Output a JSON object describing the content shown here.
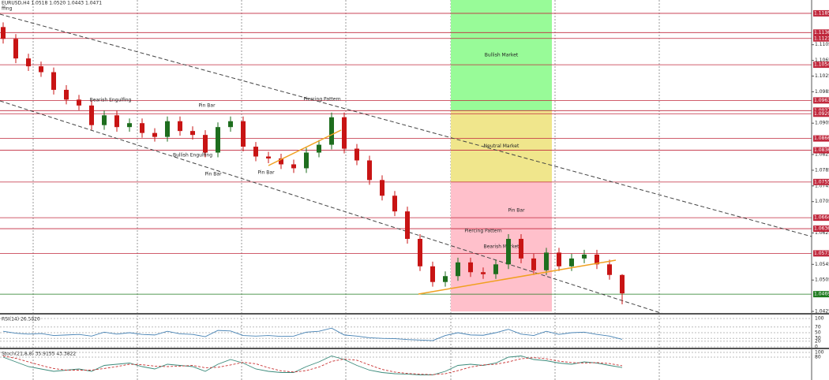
{
  "chart_data": {
    "type": "candlestick",
    "title": "EURUSD,H4  1.0518 1.0520 1.0443 1.0471",
    "subtitle": "ffing",
    "open": [
      1.115,
      1.112,
      1.107,
      1.105,
      1.1035,
      1.099,
      1.0965,
      1.095,
      1.09,
      1.0925,
      1.0895,
      1.0905,
      1.088,
      1.087,
      1.091,
      1.0885,
      1.0875,
      1.083,
      1.0895,
      1.091,
      1.0845,
      1.082,
      1.0815,
      1.08,
      1.079,
      1.083,
      1.085,
      1.092,
      1.084,
      1.081,
      1.076,
      1.072,
      1.068,
      1.061,
      1.054,
      1.05,
      1.0515,
      1.055,
      1.0525,
      1.052,
      1.0545,
      1.061,
      1.056,
      1.053,
      1.0575,
      1.054,
      1.056,
      1.057,
      1.0545,
      1.0518
    ],
    "high": [
      1.1162,
      1.1132,
      1.1082,
      1.1062,
      1.1047,
      1.1002,
      1.0977,
      1.0962,
      1.0937,
      1.0937,
      1.0917,
      1.0917,
      1.0892,
      1.0922,
      1.0922,
      1.0897,
      1.0887,
      1.0907,
      1.0922,
      1.0922,
      1.0857,
      1.0832,
      1.0827,
      1.0812,
      1.0842,
      1.0862,
      1.0932,
      1.0932,
      1.0852,
      1.0822,
      1.0772,
      1.0732,
      1.0692,
      1.0622,
      1.0552,
      1.0527,
      1.0562,
      1.0562,
      1.0537,
      1.0557,
      1.0622,
      1.0622,
      1.0572,
      1.0587,
      1.0587,
      1.0572,
      1.0582,
      1.0582,
      1.0557,
      1.052
    ],
    "low": [
      1.1108,
      1.1058,
      1.1038,
      1.1023,
      1.0978,
      1.0953,
      1.0938,
      1.0888,
      1.0888,
      1.0883,
      1.0883,
      1.0868,
      1.0858,
      1.0858,
      1.0873,
      1.0863,
      1.0818,
      1.0818,
      1.0883,
      1.0833,
      1.0808,
      1.0803,
      1.0788,
      1.0778,
      1.0778,
      1.0818,
      1.0838,
      1.0828,
      1.0798,
      1.0748,
      1.0708,
      1.0668,
      1.0598,
      1.0528,
      1.0488,
      1.0488,
      1.0503,
      1.0513,
      1.0508,
      1.0508,
      1.0533,
      1.0548,
      1.0518,
      1.0518,
      1.0528,
      1.0528,
      1.0548,
      1.0533,
      1.0506,
      1.0443
    ],
    "close": [
      1.112,
      1.107,
      1.105,
      1.1035,
      1.099,
      1.0965,
      1.095,
      1.09,
      1.0925,
      1.0895,
      1.0905,
      1.088,
      1.087,
      1.091,
      1.0885,
      1.0875,
      1.083,
      1.0895,
      1.091,
      1.0845,
      1.082,
      1.0815,
      1.08,
      1.079,
      1.083,
      1.085,
      1.092,
      1.084,
      1.081,
      1.076,
      1.072,
      1.068,
      1.061,
      1.054,
      1.05,
      1.0515,
      1.055,
      1.0525,
      1.052,
      1.0545,
      1.061,
      1.056,
      1.053,
      1.0575,
      1.054,
      1.056,
      1.057,
      1.0545,
      1.0518,
      1.0471
    ],
    "up_color": "#1e6e1e",
    "down_color": "#c81414",
    "ylim": [
      1.0419,
      1.1219
    ],
    "yticks": [
      1.1105,
      1.1065,
      1.1025,
      1.0985,
      1.0905,
      1.0825,
      1.0785,
      1.0745,
      1.0705,
      1.0625,
      1.0545,
      1.0505,
      1.0425
    ],
    "levels": [
      {
        "value": 1.1185,
        "color": "#c0283c"
      },
      {
        "value": 1.1136,
        "color": "#c0283c"
      },
      {
        "value": 1.1121,
        "color": "#c0283c"
      },
      {
        "value": 1.1054,
        "color": "#c0283c"
      },
      {
        "value": 1.0963,
        "color": "#c0283c"
      },
      {
        "value": 1.0937,
        "color": "#c0283c"
      },
      {
        "value": 1.0929,
        "color": "#c0283c"
      },
      {
        "value": 1.0866,
        "color": "#c0283c"
      },
      {
        "value": 1.0836,
        "color": "#c0283c"
      },
      {
        "value": 1.0755,
        "color": "#c0283c"
      },
      {
        "value": 1.0664,
        "color": "#c0283c"
      },
      {
        "value": 1.0636,
        "color": "#c0283c"
      },
      {
        "value": 1.0573,
        "color": "#c0283c"
      },
      {
        "value": 1.0469,
        "color": "#1e7a1e"
      }
    ],
    "zones": [
      {
        "label": "Bullish Market",
        "from": 1.0937,
        "to": 1.1219,
        "color": "#98fb98"
      },
      {
        "label": "Neutral Market",
        "from": 1.0755,
        "to": 1.0937,
        "color": "#f0e68c"
      },
      {
        "label": "Bearish Market",
        "from": 1.0425,
        "to": 1.0755,
        "color": "#ffc0cb"
      }
    ],
    "annotations": [
      "Bearish Engulfing",
      "Pin Bar",
      "Piercing Pattern",
      "Bullish Engulfing",
      "Pin Bar",
      "Pin Bar",
      "Piercing Pattern",
      "Pin Bar"
    ],
    "rsi": {
      "title": "RSI(14) 26.5820",
      "color": "#4682b4",
      "ylim": [
        0,
        100
      ],
      "yticks": [
        100,
        70,
        50,
        30,
        20,
        0
      ],
      "values": [
        55,
        48,
        45,
        47,
        40,
        42,
        44,
        38,
        52,
        45,
        50,
        44,
        42,
        55,
        46,
        44,
        36,
        58,
        56,
        40,
        38,
        40,
        37,
        38,
        52,
        55,
        66,
        42,
        38,
        32,
        30,
        29,
        26,
        24,
        22,
        40,
        50,
        42,
        41,
        50,
        62,
        45,
        40,
        55,
        44,
        50,
        52,
        44,
        38,
        26.582
      ]
    },
    "stoch": {
      "title": "Stoch(21,8,8) 35.9155 43.3822",
      "ylim": [
        0,
        100
      ],
      "yticks": [
        100,
        80
      ],
      "series": [
        {
          "color": "#3a8a7a",
          "values": [
            80,
            60,
            40,
            30,
            20,
            25,
            30,
            20,
            45,
            50,
            55,
            40,
            30,
            50,
            45,
            40,
            20,
            50,
            70,
            55,
            30,
            20,
            15,
            15,
            40,
            60,
            85,
            70,
            45,
            25,
            15,
            10,
            8,
            5,
            5,
            20,
            45,
            50,
            45,
            55,
            80,
            85,
            70,
            65,
            55,
            50,
            60,
            55,
            45,
            35.9155
          ]
        },
        {
          "color": "#c83232",
          "values": [
            85,
            75,
            60,
            45,
            32,
            25,
            25,
            25,
            32,
            40,
            50,
            48,
            42,
            40,
            42,
            45,
            35,
            37,
            47,
            58,
            52,
            35,
            22,
            17,
            23,
            38,
            62,
            72,
            67,
            47,
            28,
            17,
            11,
            8,
            6,
            10,
            23,
            38,
            47,
            50,
            60,
            73,
            78,
            73,
            63,
            57,
            55,
            57,
            53,
            43.3822
          ]
        }
      ]
    }
  }
}
